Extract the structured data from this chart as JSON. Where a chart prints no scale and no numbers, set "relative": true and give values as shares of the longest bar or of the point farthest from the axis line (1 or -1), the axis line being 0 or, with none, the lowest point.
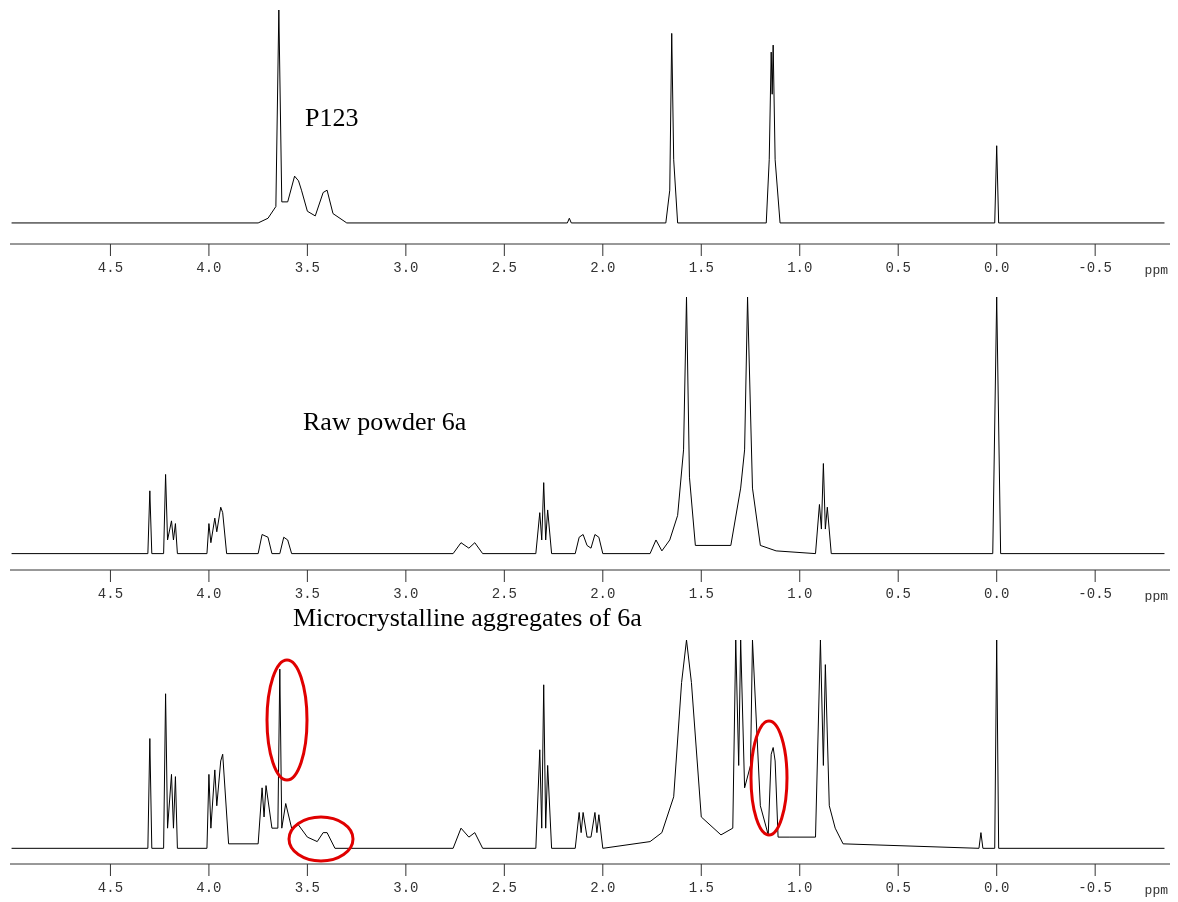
{
  "chart_data": [
    {
      "type": "line",
      "title": "P123",
      "relative": true,
      "xlabel": "ppm",
      "xlim": [
        5.01,
        -0.88
      ],
      "xticks": [
        4.5,
        {
          "value": 4,
          "label": "4.0"
        },
        3.5,
        {
          "value": 3,
          "label": "3.0"
        },
        2.5,
        {
          "value": 2,
          "label": "2.0"
        },
        1.5,
        {
          "value": 1,
          "label": "1.0"
        },
        0.5,
        {
          "value": 0,
          "label": "0.0"
        },
        -0.5
      ],
      "grid": false,
      "marker": "none",
      "line_style": "solid",
      "series": [
        {
          "color": "#000000",
          "x": [
            5.0,
            3.75,
            3.7,
            3.66,
            3.645,
            3.63,
            3.6,
            3.565,
            3.545,
            3.53,
            3.5,
            3.46,
            3.42,
            3.4,
            3.37,
            3.3,
            2.18,
            2.17,
            2.16,
            1.68,
            1.66,
            1.65,
            1.64,
            1.62,
            1.17,
            1.155,
            1.145,
            1.14,
            1.135,
            1.125,
            1.1,
            0.01,
            0.0,
            -0.01,
            -0.85
          ],
          "values": [
            0.09,
            0.09,
            0.11,
            0.16,
            1.0,
            0.18,
            0.18,
            0.29,
            0.27,
            0.23,
            0.14,
            0.12,
            0.22,
            0.23,
            0.13,
            0.09,
            0.09,
            0.11,
            0.09,
            0.09,
            0.23,
            0.9,
            0.36,
            0.09,
            0.09,
            0.36,
            0.82,
            0.64,
            0.85,
            0.36,
            0.09,
            0.09,
            0.42,
            0.09,
            0.09
          ]
        }
      ]
    },
    {
      "type": "line",
      "title": "Raw powder 6a",
      "relative": true,
      "xlabel": "ppm",
      "xlim": [
        5.01,
        -0.88
      ],
      "xticks": [
        4.5,
        {
          "value": 4,
          "label": "4.0"
        },
        3.5,
        {
          "value": 3,
          "label": "3.0"
        },
        2.5,
        {
          "value": 2,
          "label": "2.0"
        },
        1.5,
        {
          "value": 1,
          "label": "1.0"
        },
        0.5,
        {
          "value": 0,
          "label": "0.0"
        },
        -0.5
      ],
      "grid": false,
      "marker": "none",
      "line_style": "solid",
      "series": [
        {
          "color": "#000000",
          "x": [
            5.0,
            4.31,
            4.3,
            4.29,
            4.23,
            4.22,
            4.21,
            4.19,
            4.18,
            4.17,
            4.16,
            4.01,
            4.0,
            3.99,
            3.97,
            3.96,
            3.94,
            3.93,
            3.91,
            3.75,
            3.73,
            3.7,
            3.68,
            3.64,
            3.62,
            3.6,
            3.58,
            2.76,
            2.72,
            2.68,
            2.65,
            2.61,
            2.34,
            2.32,
            2.31,
            2.3,
            2.29,
            2.28,
            2.26,
            2.14,
            2.12,
            2.1,
            2.08,
            2.06,
            2.04,
            2.02,
            2.0,
            1.76,
            1.73,
            1.7,
            1.66,
            1.62,
            1.59,
            1.575,
            1.56,
            1.53,
            1.35,
            1.3,
            1.28,
            1.265,
            1.24,
            1.2,
            1.12,
            0.92,
            0.9,
            0.89,
            0.88,
            0.87,
            0.86,
            0.84,
            0.02,
            0.0,
            -0.02,
            -0.85
          ],
          "values": [
            0.06,
            0.06,
            0.29,
            0.06,
            0.06,
            0.35,
            0.11,
            0.18,
            0.11,
            0.17,
            0.06,
            0.06,
            0.17,
            0.1,
            0.19,
            0.14,
            0.23,
            0.21,
            0.06,
            0.06,
            0.13,
            0.12,
            0.06,
            0.06,
            0.12,
            0.11,
            0.06,
            0.06,
            0.1,
            0.08,
            0.1,
            0.06,
            0.06,
            0.21,
            0.11,
            0.32,
            0.11,
            0.22,
            0.06,
            0.06,
            0.12,
            0.13,
            0.09,
            0.08,
            0.13,
            0.12,
            0.06,
            0.06,
            0.11,
            0.07,
            0.11,
            0.2,
            0.44,
            1.0,
            0.34,
            0.09,
            0.09,
            0.3,
            0.44,
            1.0,
            0.3,
            0.09,
            0.07,
            0.06,
            0.24,
            0.15,
            0.39,
            0.15,
            0.23,
            0.06,
            0.06,
            1.0,
            0.06,
            0.06
          ]
        }
      ]
    },
    {
      "type": "line",
      "title": "Microcrystalline aggregates of 6a",
      "relative": true,
      "xlabel": "ppm",
      "xlim": [
        5.01,
        -0.88
      ],
      "xticks": [
        4.5,
        {
          "value": 4,
          "label": "4.0"
        },
        3.5,
        {
          "value": 3,
          "label": "3.0"
        },
        2.5,
        {
          "value": 2,
          "label": "2.0"
        },
        1.5,
        {
          "value": 1,
          "label": "1.0"
        },
        0.5,
        {
          "value": 0,
          "label": "0.0"
        },
        -0.5
      ],
      "grid": false,
      "marker": "none",
      "line_style": "solid",
      "series": [
        {
          "color": "#000000",
          "x": [
            5.0,
            4.31,
            4.3,
            4.29,
            4.23,
            4.22,
            4.21,
            4.19,
            4.18,
            4.17,
            4.16,
            4.01,
            4.0,
            3.99,
            3.97,
            3.96,
            3.94,
            3.93,
            3.9,
            3.75,
            3.73,
            3.72,
            3.71,
            3.68,
            3.65,
            3.64,
            3.63,
            3.61,
            3.58,
            3.55,
            3.5,
            3.45,
            3.42,
            3.4,
            3.36,
            2.76,
            2.72,
            2.68,
            2.65,
            2.61,
            2.34,
            2.32,
            2.31,
            2.3,
            2.29,
            2.28,
            2.26,
            2.14,
            2.12,
            2.11,
            2.1,
            2.08,
            2.06,
            2.04,
            2.03,
            2.02,
            2.0,
            1.76,
            1.7,
            1.64,
            1.6,
            1.575,
            1.55,
            1.5,
            1.4,
            1.34,
            1.325,
            1.31,
            1.3,
            1.28,
            1.25,
            1.24,
            1.2,
            1.16,
            1.145,
            1.135,
            1.125,
            1.11,
            1.05,
            0.92,
            0.895,
            0.88,
            0.87,
            0.85,
            0.82,
            0.78,
            0.09,
            0.08,
            0.07,
            0.01,
            0.0,
            -0.01,
            -0.85
          ],
          "values": [
            0.07,
            0.07,
            0.56,
            0.07,
            0.07,
            0.76,
            0.16,
            0.4,
            0.16,
            0.39,
            0.07,
            0.07,
            0.4,
            0.16,
            0.42,
            0.26,
            0.46,
            0.49,
            0.09,
            0.09,
            0.34,
            0.21,
            0.35,
            0.16,
            0.16,
            0.87,
            0.16,
            0.27,
            0.16,
            0.18,
            0.12,
            0.1,
            0.14,
            0.14,
            0.07,
            0.07,
            0.16,
            0.12,
            0.14,
            0.07,
            0.07,
            0.51,
            0.16,
            0.8,
            0.16,
            0.44,
            0.07,
            0.07,
            0.23,
            0.14,
            0.23,
            0.12,
            0.12,
            0.23,
            0.14,
            0.22,
            0.07,
            0.1,
            0.14,
            0.3,
            0.81,
            1.0,
            0.81,
            0.21,
            0.13,
            0.16,
            1.0,
            0.44,
            1.0,
            0.34,
            0.44,
            1.0,
            0.26,
            0.13,
            0.49,
            0.52,
            0.46,
            0.12,
            0.12,
            0.12,
            1.0,
            0.44,
            0.89,
            0.26,
            0.16,
            0.09,
            0.07,
            0.14,
            0.07,
            0.07,
            1.0,
            0.07,
            0.07
          ]
        }
      ]
    }
  ]
}
